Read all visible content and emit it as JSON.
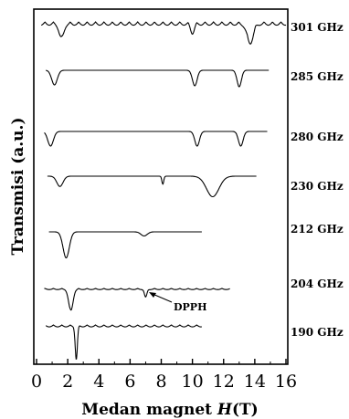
{
  "chart_data": {
    "type": "line",
    "xlabel": "Medan magnet ",
    "xlabel_var": "H",
    "xlabel_unit": "(T)",
    "ylabel": "Transmisi (a.u.)",
    "xlim": [
      0,
      16
    ],
    "xticks": [
      "0",
      "2",
      "4",
      "6",
      "8",
      "10",
      "12",
      "14",
      "16"
    ],
    "annotation": {
      "text": "DPPH",
      "series": "204 GHz",
      "x": 7.0
    },
    "series": [
      {
        "name": "301 GHz",
        "x_range": [
          0.3,
          16.0
        ],
        "ripple": 0.6,
        "dips": [
          [
            1.6,
            0.55,
            0.15
          ],
          [
            10.0,
            0.35,
            0.12
          ],
          [
            13.7,
            0.75,
            0.2
          ]
        ]
      },
      {
        "name": "285 GHz",
        "x_range": [
          0.6,
          14.9
        ],
        "ripple": 0.0,
        "dips": [
          [
            1.15,
            0.8,
            0.18
          ],
          [
            10.15,
            0.85,
            0.15
          ],
          [
            13.0,
            0.9,
            0.14
          ]
        ]
      },
      {
        "name": "280 GHz",
        "x_range": [
          0.5,
          14.8
        ],
        "ripple": 0.0,
        "dips": [
          [
            0.9,
            0.8,
            0.18
          ],
          [
            10.3,
            0.8,
            0.15
          ],
          [
            13.1,
            0.8,
            0.15
          ]
        ]
      },
      {
        "name": "230 GHz",
        "x_range": [
          0.7,
          14.1
        ],
        "ripple": 0.0,
        "dips": [
          [
            1.5,
            0.45,
            0.2
          ],
          [
            8.1,
            0.35,
            0.06
          ],
          [
            11.3,
            0.9,
            0.4
          ]
        ]
      },
      {
        "name": "212 GHz",
        "x_range": [
          0.8,
          10.6
        ],
        "ripple": 0.0,
        "dips": [
          [
            1.9,
            0.95,
            0.2
          ],
          [
            6.9,
            0.15,
            0.2
          ]
        ]
      },
      {
        "name": "204 GHz",
        "x_range": [
          0.5,
          12.4
        ],
        "ripple": 0.25,
        "dips": [
          [
            2.2,
            0.9,
            0.14
          ],
          [
            7.0,
            0.35,
            0.08
          ]
        ]
      },
      {
        "name": "190 GHz",
        "x_range": [
          0.6,
          10.6
        ],
        "ripple": 0.35,
        "dips": [
          [
            2.55,
            1.0,
            0.07
          ]
        ]
      }
    ]
  }
}
